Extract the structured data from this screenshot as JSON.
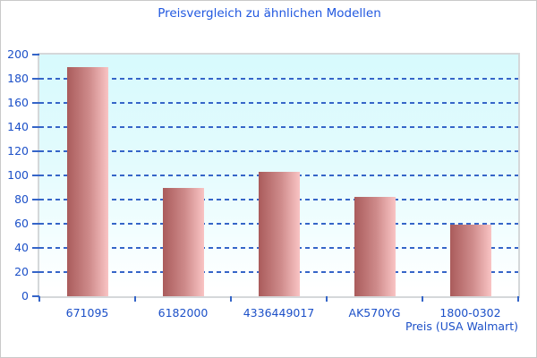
{
  "chart_data": {
    "type": "bar",
    "title": "Preisvergleich zu ähnlichen Modellen",
    "xlabel": "Preis (USA Walmart)",
    "ylabel": "",
    "categories": [
      "671095",
      "6182000",
      "4336449017",
      "AK570YG",
      "1800-0302"
    ],
    "values": [
      190,
      90,
      103,
      82,
      59
    ],
    "ylim": [
      0,
      200
    ],
    "ytick_step": 20,
    "ytick_labels": [
      "0",
      "20",
      "40",
      "60",
      "80",
      "100",
      "120",
      "140",
      "160",
      "180",
      "200"
    ],
    "grid": "horizontal-dashed",
    "legend_position": "none",
    "colors": {
      "title_text": "#2158e0",
      "axis_text": "#1c50c8",
      "gridline": "#3565c8",
      "tick": "#3565c8",
      "plot_border": "#d5d8da",
      "plot_bg_top": "#d7fafd",
      "plot_bg_bottom": "#ffffff",
      "bar_gradient_left": "#aa5b5b",
      "bar_gradient_right": "#f9c4c4",
      "page_bg": "#ffffff",
      "page_border": "#c9c9c9"
    }
  }
}
